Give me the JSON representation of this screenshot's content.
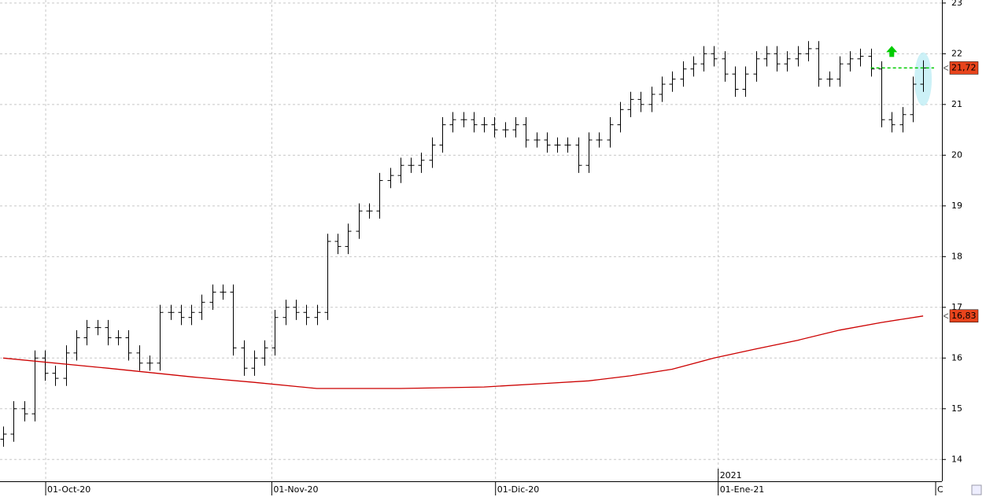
{
  "chart_data": {
    "type": "ohlc",
    "open": [
      14.4,
      14.5,
      15.0,
      14.9,
      16.0,
      15.7,
      15.6,
      16.1,
      16.4,
      16.6,
      16.6,
      16.4,
      16.4,
      16.1,
      15.9,
      15.9,
      16.9,
      16.9,
      16.8,
      16.9,
      17.1,
      17.3,
      17.3,
      16.2,
      15.8,
      16.0,
      16.2,
      16.8,
      17.0,
      16.9,
      16.8,
      16.9,
      18.3,
      18.2,
      18.5,
      18.9,
      18.9,
      19.5,
      19.6,
      19.8,
      19.8,
      19.9,
      20.2,
      20.6,
      20.7,
      20.7,
      20.6,
      20.6,
      20.5,
      20.5,
      20.6,
      20.3,
      20.3,
      20.2,
      20.2,
      20.2,
      19.8,
      20.3,
      20.3,
      20.6,
      20.9,
      21.1,
      21.0,
      21.2,
      21.4,
      21.5,
      21.7,
      21.8,
      22.0,
      21.9,
      21.6,
      21.3,
      21.6,
      21.9,
      22.0,
      21.8,
      21.9,
      22.0,
      22.1,
      21.5,
      21.5,
      21.8,
      21.9,
      21.95,
      21.7,
      20.7,
      20.6,
      20.8,
      21.4
    ],
    "high": [
      14.65,
      15.15,
      15.15,
      16.15,
      16.15,
      15.85,
      16.25,
      16.55,
      16.75,
      16.75,
      16.75,
      16.55,
      16.55,
      16.25,
      16.05,
      17.05,
      17.05,
      17.05,
      17.05,
      17.25,
      17.45,
      17.45,
      17.45,
      16.35,
      16.15,
      16.35,
      16.95,
      17.15,
      17.15,
      17.05,
      17.05,
      18.45,
      18.45,
      18.65,
      19.05,
      19.05,
      19.65,
      19.75,
      19.95,
      19.95,
      20.05,
      20.35,
      20.75,
      20.85,
      20.85,
      20.85,
      20.75,
      20.75,
      20.65,
      20.75,
      20.75,
      20.45,
      20.45,
      20.35,
      20.35,
      20.35,
      20.45,
      20.45,
      20.75,
      21.05,
      21.25,
      21.25,
      21.35,
      21.55,
      21.65,
      21.85,
      21.95,
      22.15,
      22.15,
      22.05,
      21.75,
      21.75,
      22.05,
      22.15,
      22.15,
      22.05,
      22.15,
      22.25,
      22.25,
      21.65,
      21.95,
      22.05,
      22.1,
      22.1,
      21.85,
      20.85,
      20.95,
      21.55,
      21.87
    ],
    "low": [
      14.25,
      14.35,
      14.75,
      14.75,
      15.55,
      15.45,
      15.45,
      15.95,
      16.25,
      16.45,
      16.25,
      16.25,
      15.95,
      15.75,
      15.75,
      15.75,
      16.75,
      16.65,
      16.65,
      16.75,
      16.95,
      17.15,
      16.05,
      15.65,
      15.65,
      15.85,
      16.05,
      16.65,
      16.75,
      16.65,
      16.65,
      16.75,
      18.05,
      18.05,
      18.35,
      18.75,
      18.75,
      19.35,
      19.45,
      19.65,
      19.65,
      19.75,
      20.05,
      20.45,
      20.55,
      20.45,
      20.45,
      20.35,
      20.35,
      20.35,
      20.15,
      20.15,
      20.05,
      20.05,
      20.05,
      19.65,
      19.65,
      20.15,
      20.15,
      20.45,
      20.75,
      20.85,
      20.85,
      21.05,
      21.25,
      21.35,
      21.55,
      21.65,
      21.75,
      21.45,
      21.15,
      21.15,
      21.45,
      21.75,
      21.65,
      21.65,
      21.75,
      21.85,
      21.35,
      21.35,
      21.35,
      21.65,
      21.75,
      21.55,
      20.55,
      20.45,
      20.45,
      20.65,
      21.25
    ],
    "close": [
      14.5,
      15.0,
      14.9,
      16.0,
      15.7,
      15.6,
      16.1,
      16.4,
      16.6,
      16.6,
      16.4,
      16.4,
      16.1,
      15.9,
      15.9,
      16.9,
      16.9,
      16.8,
      16.9,
      17.1,
      17.3,
      17.3,
      16.2,
      15.8,
      16.0,
      16.2,
      16.8,
      17.0,
      16.9,
      16.8,
      16.9,
      18.3,
      18.2,
      18.5,
      18.9,
      18.9,
      19.5,
      19.6,
      19.8,
      19.8,
      19.9,
      20.2,
      20.6,
      20.7,
      20.7,
      20.6,
      20.6,
      20.5,
      20.5,
      20.6,
      20.3,
      20.3,
      20.2,
      20.2,
      20.2,
      19.8,
      20.3,
      20.3,
      20.6,
      20.9,
      21.1,
      21.0,
      21.2,
      21.4,
      21.5,
      21.7,
      21.8,
      22.0,
      21.9,
      21.6,
      21.3,
      21.6,
      21.9,
      22.0,
      21.8,
      21.9,
      22.0,
      22.1,
      21.5,
      21.5,
      21.8,
      21.9,
      21.95,
      21.7,
      20.7,
      20.6,
      20.8,
      21.4,
      21.72
    ],
    "color": "#000000",
    "moving_average": {
      "color": "#cc0000",
      "x": [
        0,
        10,
        18,
        24,
        30,
        38,
        46,
        52,
        56,
        60,
        64,
        68,
        72,
        76,
        80,
        84,
        88
      ],
      "values": [
        16.0,
        15.8,
        15.63,
        15.52,
        15.4,
        15.4,
        15.43,
        15.5,
        15.55,
        15.65,
        15.78,
        16.0,
        16.18,
        16.35,
        16.55,
        16.7,
        16.83
      ]
    },
    "last_price": {
      "value": 21.72,
      "label": "21,72"
    },
    "ma_last": {
      "value": 16.83,
      "label": "16,83"
    },
    "label_color": "#e8441c",
    "level_color": "#00cc00",
    "xlim": [
      -0.3,
      89.8
    ],
    "ylim": [
      13.57,
      23.06
    ],
    "yticks": [
      14,
      15,
      16,
      17,
      18,
      19,
      20,
      21,
      22,
      23
    ],
    "xticks": [
      {
        "value": 4.07,
        "label": "01-Oct-20"
      },
      {
        "value": 25.7,
        "label": "01-Nov-20"
      },
      {
        "value": 47.1,
        "label": "01-Dic-20"
      },
      {
        "value": 68.4,
        "label": "01-Ene-21"
      },
      {
        "value": 89.2,
        "label": "C"
      }
    ],
    "year_ticks": [
      {
        "value": 68.4,
        "label": "2021"
      }
    ],
    "grid": true
  }
}
